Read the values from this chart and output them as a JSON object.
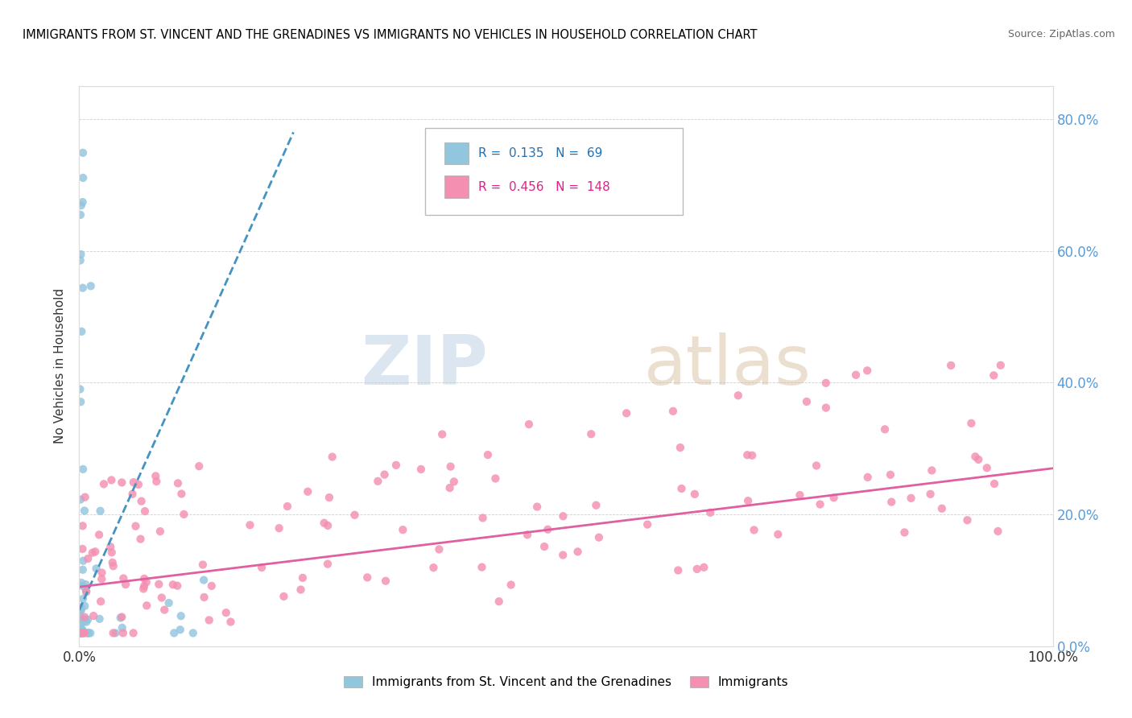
{
  "title": "IMMIGRANTS FROM ST. VINCENT AND THE GRENADINES VS IMMIGRANTS NO VEHICLES IN HOUSEHOLD CORRELATION CHART",
  "source": "Source: ZipAtlas.com",
  "ylabel": "No Vehicles in Household",
  "watermark_zip": "ZIP",
  "watermark_atlas": "atlas",
  "blue_R": 0.135,
  "blue_N": 69,
  "pink_R": 0.456,
  "pink_N": 148,
  "blue_color": "#92c5de",
  "pink_color": "#f48fb1",
  "blue_line_color": "#4393c3",
  "pink_line_color": "#e05fa0",
  "legend_label_blue": "Immigrants from St. Vincent and the Grenadines",
  "legend_label_pink": "Immigrants",
  "xlim": [
    0.0,
    1.0
  ],
  "ylim": [
    0.0,
    0.85
  ],
  "yticks": [
    0.0,
    0.2,
    0.4,
    0.6,
    0.8
  ],
  "yticklabels_right": [
    "0.0%",
    "20.0%",
    "40.0%",
    "60.0%",
    "80.0%"
  ],
  "xtick_left": "0.0%",
  "xtick_right": "100.0%"
}
